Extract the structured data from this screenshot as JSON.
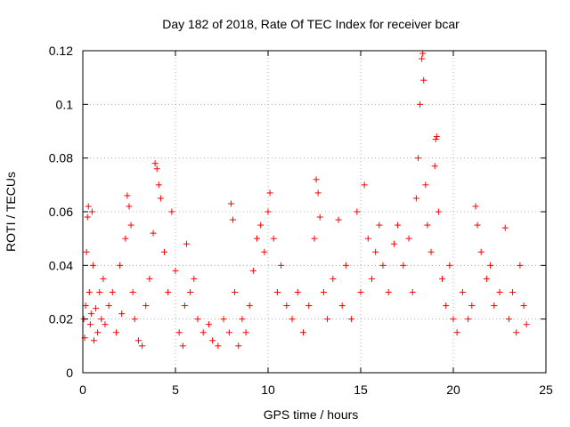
{
  "chart_data": {
    "type": "scatter",
    "title": "Day 182 of 2018, Rate Of TEC Index for receiver bcar",
    "xlabel": "GPS time / hours",
    "ylabel": "ROTI / TECUs",
    "xlim": [
      0,
      25
    ],
    "ylim": [
      0,
      0.12
    ],
    "xticks": [
      0,
      5,
      10,
      15,
      20,
      25
    ],
    "xtick_labels": [
      "0",
      "5",
      "10",
      "15",
      "20",
      "25"
    ],
    "yticks": [
      0,
      0.02,
      0.04,
      0.06,
      0.08,
      0.1,
      0.12
    ],
    "ytick_labels": [
      "0",
      "0.02",
      "0.04",
      "0.06",
      "0.08",
      "0.1",
      "0.12"
    ],
    "grid": true,
    "marker": "plus",
    "color": "#ff0000",
    "series": [
      {
        "name": "ROTI",
        "points": [
          [
            0.05,
            0.02
          ],
          [
            0.1,
            0.013
          ],
          [
            0.15,
            0.025
          ],
          [
            0.2,
            0.045
          ],
          [
            0.25,
            0.058
          ],
          [
            0.3,
            0.062
          ],
          [
            0.35,
            0.03
          ],
          [
            0.4,
            0.018
          ],
          [
            0.45,
            0.022
          ],
          [
            0.5,
            0.06
          ],
          [
            0.55,
            0.04
          ],
          [
            0.6,
            0.012
          ],
          [
            0.7,
            0.024
          ],
          [
            0.8,
            0.015
          ],
          [
            0.9,
            0.03
          ],
          [
            1.0,
            0.02
          ],
          [
            1.1,
            0.035
          ],
          [
            1.2,
            0.018
          ],
          [
            1.4,
            0.025
          ],
          [
            1.6,
            0.03
          ],
          [
            1.8,
            0.015
          ],
          [
            2.0,
            0.04
          ],
          [
            2.1,
            0.022
          ],
          [
            2.3,
            0.05
          ],
          [
            2.4,
            0.066
          ],
          [
            2.5,
            0.062
          ],
          [
            2.6,
            0.055
          ],
          [
            2.7,
            0.03
          ],
          [
            2.8,
            0.02
          ],
          [
            3.0,
            0.012
          ],
          [
            3.2,
            0.01
          ],
          [
            3.4,
            0.025
          ],
          [
            3.6,
            0.035
          ],
          [
            3.8,
            0.052
          ],
          [
            3.9,
            0.078
          ],
          [
            4.0,
            0.076
          ],
          [
            4.1,
            0.07
          ],
          [
            4.2,
            0.065
          ],
          [
            4.4,
            0.045
          ],
          [
            4.6,
            0.03
          ],
          [
            4.8,
            0.06
          ],
          [
            5.0,
            0.038
          ],
          [
            5.2,
            0.015
          ],
          [
            5.4,
            0.01
          ],
          [
            5.5,
            0.025
          ],
          [
            5.6,
            0.048
          ],
          [
            5.8,
            0.03
          ],
          [
            6.0,
            0.035
          ],
          [
            6.2,
            0.02
          ],
          [
            6.5,
            0.015
          ],
          [
            6.8,
            0.018
          ],
          [
            7.0,
            0.012
          ],
          [
            7.3,
            0.01
          ],
          [
            7.6,
            0.02
          ],
          [
            7.9,
            0.015
          ],
          [
            8.0,
            0.063
          ],
          [
            8.1,
            0.057
          ],
          [
            8.2,
            0.03
          ],
          [
            8.4,
            0.01
          ],
          [
            8.6,
            0.02
          ],
          [
            8.8,
            0.015
          ],
          [
            9.0,
            0.025
          ],
          [
            9.2,
            0.038
          ],
          [
            9.4,
            0.05
          ],
          [
            9.6,
            0.055
          ],
          [
            9.8,
            0.045
          ],
          [
            10.0,
            0.06
          ],
          [
            10.1,
            0.067
          ],
          [
            10.3,
            0.05
          ],
          [
            10.5,
            0.03
          ],
          [
            10.7,
            0.04
          ],
          [
            11.0,
            0.025
          ],
          [
            11.3,
            0.02
          ],
          [
            11.6,
            0.03
          ],
          [
            11.9,
            0.015
          ],
          [
            12.2,
            0.025
          ],
          [
            12.5,
            0.05
          ],
          [
            12.6,
            0.072
          ],
          [
            12.7,
            0.067
          ],
          [
            12.8,
            0.058
          ],
          [
            13.0,
            0.03
          ],
          [
            13.2,
            0.02
          ],
          [
            13.5,
            0.035
          ],
          [
            13.8,
            0.057
          ],
          [
            14.0,
            0.025
          ],
          [
            14.2,
            0.04
          ],
          [
            14.5,
            0.02
          ],
          [
            14.8,
            0.06
          ],
          [
            15.0,
            0.03
          ],
          [
            15.2,
            0.07
          ],
          [
            15.4,
            0.05
          ],
          [
            15.6,
            0.035
          ],
          [
            15.8,
            0.045
          ],
          [
            16.0,
            0.055
          ],
          [
            16.2,
            0.04
          ],
          [
            16.5,
            0.03
          ],
          [
            16.8,
            0.048
          ],
          [
            17.0,
            0.055
          ],
          [
            17.3,
            0.04
          ],
          [
            17.6,
            0.05
          ],
          [
            17.8,
            0.03
          ],
          [
            18.0,
            0.065
          ],
          [
            18.1,
            0.08
          ],
          [
            18.2,
            0.1
          ],
          [
            18.3,
            0.117
          ],
          [
            18.35,
            0.119
          ],
          [
            18.4,
            0.109
          ],
          [
            18.5,
            0.07
          ],
          [
            18.6,
            0.055
          ],
          [
            18.8,
            0.045
          ],
          [
            19.0,
            0.077
          ],
          [
            19.05,
            0.087
          ],
          [
            19.1,
            0.088
          ],
          [
            19.2,
            0.06
          ],
          [
            19.4,
            0.035
          ],
          [
            19.6,
            0.025
          ],
          [
            19.8,
            0.04
          ],
          [
            20.0,
            0.02
          ],
          [
            20.2,
            0.015
          ],
          [
            20.5,
            0.03
          ],
          [
            20.8,
            0.02
          ],
          [
            21.0,
            0.025
          ],
          [
            21.2,
            0.062
          ],
          [
            21.3,
            0.055
          ],
          [
            21.5,
            0.045
          ],
          [
            21.8,
            0.035
          ],
          [
            22.0,
            0.04
          ],
          [
            22.2,
            0.025
          ],
          [
            22.5,
            0.03
          ],
          [
            22.8,
            0.054
          ],
          [
            23.0,
            0.02
          ],
          [
            23.2,
            0.03
          ],
          [
            23.4,
            0.015
          ],
          [
            23.6,
            0.04
          ],
          [
            23.8,
            0.025
          ],
          [
            23.95,
            0.018
          ]
        ]
      }
    ]
  }
}
